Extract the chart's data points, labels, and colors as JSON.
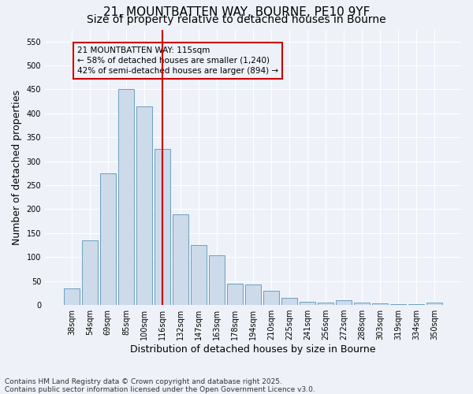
{
  "title_line1": "21, MOUNTBATTEN WAY, BOURNE, PE10 9YF",
  "title_line2": "Size of property relative to detached houses in Bourne",
  "xlabel": "Distribution of detached houses by size in Bourne",
  "ylabel": "Number of detached properties",
  "categories": [
    "38sqm",
    "54sqm",
    "69sqm",
    "85sqm",
    "100sqm",
    "116sqm",
    "132sqm",
    "147sqm",
    "163sqm",
    "178sqm",
    "194sqm",
    "210sqm",
    "225sqm",
    "241sqm",
    "256sqm",
    "272sqm",
    "288sqm",
    "303sqm",
    "319sqm",
    "334sqm",
    "350sqm"
  ],
  "values": [
    35,
    135,
    275,
    450,
    415,
    325,
    190,
    125,
    103,
    45,
    43,
    30,
    15,
    7,
    5,
    10,
    5,
    4,
    2,
    1,
    5
  ],
  "bar_color": "#ccdaea",
  "bar_edge_color": "#6b9fbf",
  "vline_color": "#cc0000",
  "annotation_text": "21 MOUNTBATTEN WAY: 115sqm\n← 58% of detached houses are smaller (1,240)\n42% of semi-detached houses are larger (894) →",
  "annotation_box_color": "#cc0000",
  "ylim": [
    0,
    575
  ],
  "yticks": [
    0,
    50,
    100,
    150,
    200,
    250,
    300,
    350,
    400,
    450,
    500,
    550
  ],
  "footer_line1": "Contains HM Land Registry data © Crown copyright and database right 2025.",
  "footer_line2": "Contains public sector information licensed under the Open Government Licence v3.0.",
  "background_color": "#eef2f8",
  "grid_color": "#ffffff",
  "title_fontsize": 11,
  "subtitle_fontsize": 10,
  "tick_fontsize": 7,
  "label_fontsize": 9,
  "footer_fontsize": 6.5,
  "vline_index": 5
}
